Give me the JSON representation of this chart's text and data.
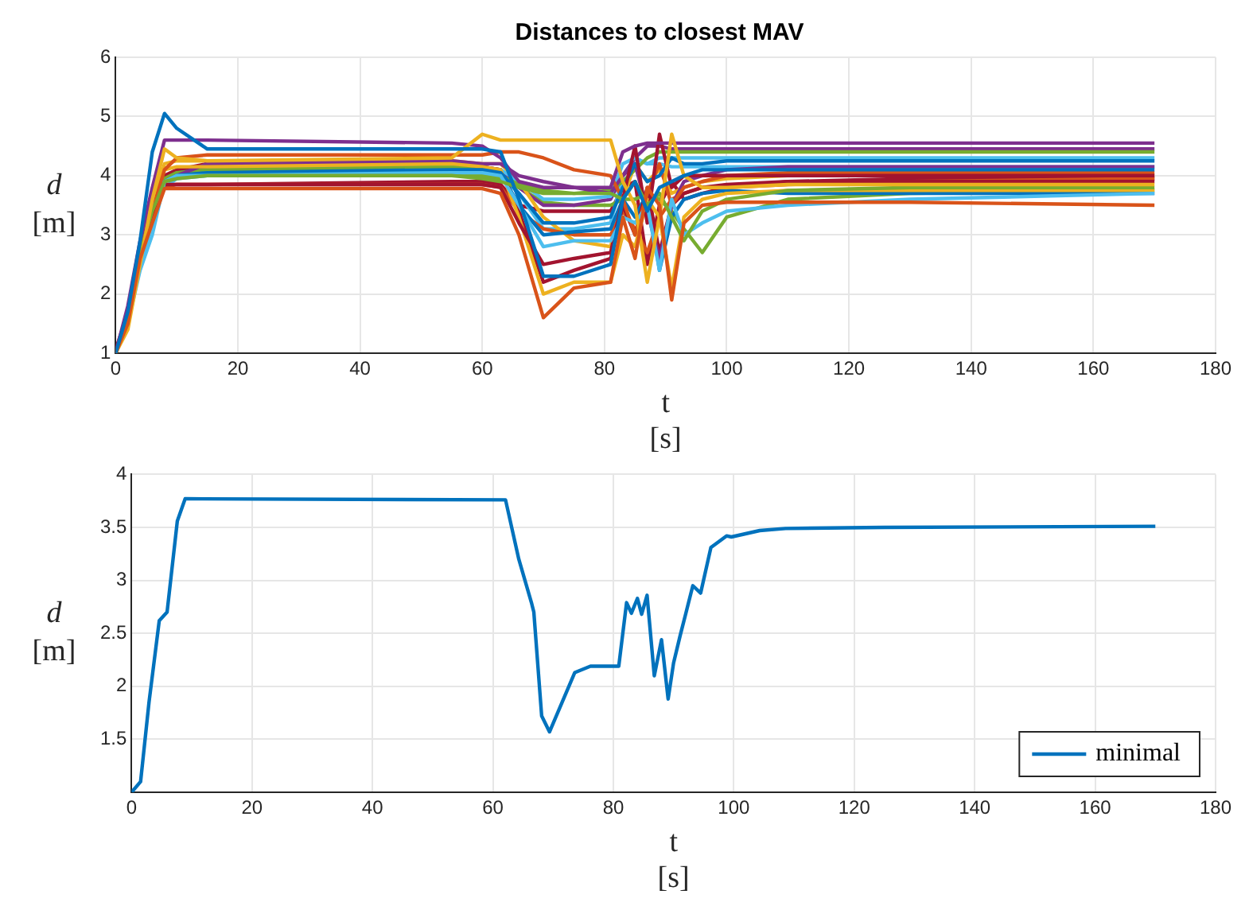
{
  "chart_data": [
    {
      "type": "line",
      "title": "Distances to closest MAV",
      "xlabel": "t\n[s]",
      "ylabel": "d\n[m]",
      "xlim": [
        0,
        180
      ],
      "xticks": [
        0,
        20,
        40,
        60,
        80,
        100,
        120,
        140,
        160,
        180
      ],
      "ylim": [
        1,
        6
      ],
      "yticks": [
        1,
        2,
        3,
        4,
        5,
        6
      ],
      "grid": true,
      "legend": false,
      "x": [
        0,
        2,
        4,
        6,
        8,
        10,
        15,
        55,
        60,
        63,
        66,
        70,
        75,
        81,
        83,
        85,
        87,
        89,
        91,
        93,
        96,
        100,
        110,
        130,
        170
      ],
      "series": [
        {
          "color": "#0072bd",
          "values": [
            1.0,
            1.7,
            2.9,
            4.4,
            5.05,
            4.8,
            4.45,
            4.45,
            4.45,
            4.4,
            3.6,
            2.3,
            2.3,
            2.5,
            3.6,
            3.9,
            3.4,
            3.8,
            3.9,
            4.0,
            4.1,
            4.1,
            4.1,
            4.1,
            4.1
          ]
        },
        {
          "color": "#d95319",
          "values": [
            1.0,
            1.5,
            2.6,
            3.2,
            3.78,
            3.78,
            3.78,
            3.78,
            3.78,
            3.7,
            3.0,
            1.6,
            2.1,
            2.2,
            3.3,
            2.6,
            3.8,
            3.5,
            1.9,
            3.2,
            3.5,
            3.55,
            3.55,
            3.55,
            3.5
          ]
        },
        {
          "color": "#edb120",
          "values": [
            1.0,
            1.4,
            2.5,
            3.6,
            4.45,
            4.3,
            4.25,
            4.3,
            4.7,
            4.6,
            4.6,
            4.6,
            4.6,
            4.6,
            3.9,
            3.5,
            2.2,
            3.3,
            4.7,
            4.0,
            3.8,
            3.8,
            3.85,
            3.85,
            3.85
          ]
        },
        {
          "color": "#7e2f8e",
          "values": [
            1.0,
            1.8,
            2.9,
            3.8,
            4.6,
            4.6,
            4.6,
            4.55,
            4.5,
            4.3,
            3.9,
            3.8,
            3.8,
            3.8,
            4.4,
            4.5,
            4.55,
            4.55,
            4.55,
            4.55,
            4.55,
            4.55,
            4.55,
            4.55,
            4.55
          ]
        },
        {
          "color": "#77ac30",
          "values": [
            1.0,
            1.6,
            2.7,
            3.4,
            3.9,
            3.95,
            4.0,
            4.0,
            3.95,
            3.9,
            3.8,
            3.7,
            3.7,
            3.7,
            3.6,
            3.9,
            3.5,
            3.7,
            3.3,
            2.9,
            3.4,
            3.6,
            3.75,
            3.8,
            3.8
          ]
        },
        {
          "color": "#4dbeee",
          "values": [
            1.0,
            1.5,
            2.4,
            3.0,
            3.9,
            4.0,
            4.0,
            4.05,
            4.05,
            4.0,
            3.5,
            2.8,
            2.9,
            2.9,
            3.3,
            3.2,
            3.5,
            2.4,
            3.6,
            3.0,
            3.2,
            3.4,
            3.5,
            3.6,
            3.7
          ]
        },
        {
          "color": "#a2142f",
          "values": [
            1.03,
            1.55,
            2.6,
            3.3,
            3.85,
            3.85,
            3.85,
            3.85,
            3.85,
            3.8,
            3.2,
            2.5,
            2.6,
            2.7,
            3.6,
            4.5,
            3.2,
            4.7,
            3.8,
            4.0,
            4.0,
            4.0,
            4.0,
            4.0,
            4.0
          ]
        },
        {
          "color": "#0072bd",
          "values": [
            1.0,
            1.6,
            2.6,
            3.3,
            3.9,
            4.0,
            4.05,
            4.1,
            4.1,
            4.05,
            3.7,
            3.2,
            3.2,
            3.3,
            3.8,
            4.2,
            3.9,
            4.0,
            4.3,
            4.2,
            4.2,
            4.25,
            4.25,
            4.25,
            4.25
          ]
        },
        {
          "color": "#d95319",
          "values": [
            1.0,
            1.6,
            2.7,
            3.4,
            4.1,
            4.3,
            4.35,
            4.35,
            4.35,
            4.4,
            4.4,
            4.3,
            4.1,
            4.0,
            3.6,
            3.0,
            3.7,
            4.2,
            3.5,
            3.8,
            3.9,
            4.0,
            4.05,
            4.05,
            4.05
          ]
        },
        {
          "color": "#edb120",
          "values": [
            1.0,
            1.5,
            2.6,
            3.5,
            4.1,
            4.15,
            4.15,
            4.2,
            4.15,
            4.1,
            3.3,
            2.0,
            2.2,
            2.2,
            3.0,
            2.8,
            3.6,
            3.3,
            2.1,
            3.3,
            3.6,
            3.7,
            3.75,
            3.75,
            3.75
          ]
        },
        {
          "color": "#7e2f8e",
          "values": [
            1.0,
            1.7,
            2.8,
            3.5,
            3.9,
            4.0,
            4.2,
            4.25,
            4.2,
            4.2,
            4.0,
            3.9,
            3.8,
            3.7,
            4.0,
            4.2,
            3.4,
            2.6,
            3.5,
            3.9,
            4.0,
            4.1,
            4.15,
            4.15,
            4.15
          ]
        },
        {
          "color": "#77ac30",
          "values": [
            1.0,
            1.6,
            2.6,
            3.4,
            3.95,
            4.05,
            4.1,
            4.15,
            4.1,
            4.0,
            3.85,
            3.75,
            3.7,
            3.75,
            3.9,
            4.1,
            4.3,
            4.4,
            4.4,
            4.4,
            4.4,
            4.4,
            4.4,
            4.4,
            4.4
          ]
        },
        {
          "color": "#4dbeee",
          "values": [
            1.0,
            1.6,
            2.5,
            3.2,
            3.9,
            4.0,
            4.05,
            4.1,
            4.1,
            4.1,
            3.9,
            3.6,
            3.6,
            3.65,
            4.2,
            4.3,
            4.2,
            4.3,
            4.3,
            4.3,
            4.3,
            4.3,
            4.3,
            4.3,
            4.3
          ]
        },
        {
          "color": "#a2142f",
          "values": [
            1.0,
            1.6,
            2.7,
            3.4,
            4.0,
            4.1,
            4.2,
            4.2,
            4.15,
            4.1,
            3.4,
            2.2,
            2.4,
            2.6,
            3.5,
            3.0,
            3.8,
            2.7,
            3.5,
            3.7,
            3.8,
            3.85,
            3.9,
            3.9,
            3.9
          ]
        },
        {
          "color": "#0072bd",
          "values": [
            1.0,
            1.5,
            2.5,
            3.3,
            3.95,
            4.05,
            4.1,
            4.1,
            4.1,
            4.05,
            3.5,
            3.0,
            3.05,
            3.1,
            3.6,
            3.3,
            3.7,
            2.4,
            3.3,
            3.6,
            3.7,
            3.75,
            3.7,
            3.7,
            3.7
          ]
        },
        {
          "color": "#d95319",
          "values": [
            1.0,
            1.6,
            2.6,
            3.3,
            3.8,
            3.85,
            3.85,
            3.85,
            3.85,
            3.8,
            3.4,
            3.1,
            3.0,
            3.0,
            3.4,
            3.1,
            2.7,
            3.3,
            3.6,
            3.7,
            3.8,
            3.8,
            3.85,
            3.9,
            3.95
          ]
        },
        {
          "color": "#edb120",
          "values": [
            1.0,
            1.6,
            2.7,
            3.5,
            4.2,
            4.25,
            4.25,
            4.25,
            4.2,
            4.2,
            3.9,
            3.3,
            2.9,
            2.8,
            3.6,
            4.2,
            3.9,
            4.1,
            3.7,
            3.8,
            3.9,
            3.95,
            4.0,
            4.0,
            4.0
          ]
        },
        {
          "color": "#7e2f8e",
          "values": [
            1.0,
            1.7,
            2.8,
            3.5,
            3.9,
            4.05,
            4.15,
            4.2,
            4.15,
            4.1,
            3.8,
            3.5,
            3.5,
            3.6,
            4.0,
            4.3,
            4.5,
            4.5,
            4.45,
            4.45,
            4.45,
            4.45,
            4.45,
            4.45,
            4.45
          ]
        },
        {
          "color": "#77ac30",
          "values": [
            1.0,
            1.6,
            2.7,
            3.4,
            3.95,
            4.0,
            4.0,
            4.05,
            4.0,
            3.95,
            3.8,
            3.55,
            3.5,
            3.5,
            3.6,
            3.6,
            3.7,
            3.6,
            3.4,
            3.1,
            2.7,
            3.3,
            3.6,
            3.7,
            3.75
          ]
        },
        {
          "color": "#4dbeee",
          "values": [
            1.0,
            1.5,
            2.5,
            3.3,
            3.8,
            3.95,
            4.0,
            4.05,
            4.05,
            4.0,
            3.7,
            3.1,
            3.1,
            3.2,
            4.0,
            4.3,
            4.2,
            4.2,
            4.15,
            4.15,
            4.15,
            4.15,
            4.15,
            4.15,
            4.15
          ]
        },
        {
          "color": "#a2142f",
          "values": [
            1.06,
            1.68,
            2.6,
            3.4,
            3.85,
            3.85,
            3.85,
            3.9,
            3.9,
            3.85,
            3.5,
            3.4,
            3.4,
            3.4,
            3.8,
            3.9,
            2.5,
            3.5,
            3.9,
            3.6,
            3.7,
            3.8,
            3.9,
            3.95,
            3.95
          ]
        }
      ]
    },
    {
      "type": "line",
      "xlabel": "t\n[s]",
      "ylabel": "d\n[m]",
      "xlim": [
        0,
        180
      ],
      "xticks": [
        0,
        20,
        40,
        60,
        80,
        100,
        120,
        140,
        160,
        180
      ],
      "ylim": [
        1,
        4
      ],
      "yticks": [
        {
          "value": 1,
          "label": null
        },
        1.5,
        2,
        2.5,
        3,
        3.5,
        4
      ],
      "grid": true,
      "legend": "bottom right",
      "x": [
        0,
        1.5,
        2.9,
        4.6,
        5.9,
        7.6,
        8.9,
        62.1,
        64.3,
        66.4,
        66.8,
        68.1,
        69.4,
        73.6,
        76.2,
        80.9,
        82.2,
        83.0,
        84.0,
        84.7,
        85.6,
        86.8,
        88.0,
        89.1,
        90.0,
        91.1,
        92.0,
        93.2,
        94.5,
        96.2,
        98.8,
        99.6,
        104.3,
        108.6,
        125,
        170
      ],
      "series": [
        {
          "name": "minimal",
          "color": "#0072bd",
          "values": [
            1.0,
            1.1,
            1.85,
            2.62,
            2.7,
            3.56,
            3.77,
            3.76,
            3.2,
            2.79,
            2.7,
            1.72,
            1.57,
            2.13,
            2.19,
            2.19,
            2.79,
            2.69,
            2.83,
            2.68,
            2.86,
            2.1,
            2.44,
            1.88,
            2.22,
            2.48,
            2.68,
            2.95,
            2.88,
            3.31,
            3.42,
            3.41,
            3.47,
            3.49,
            3.5,
            3.51
          ]
        }
      ]
    }
  ]
}
